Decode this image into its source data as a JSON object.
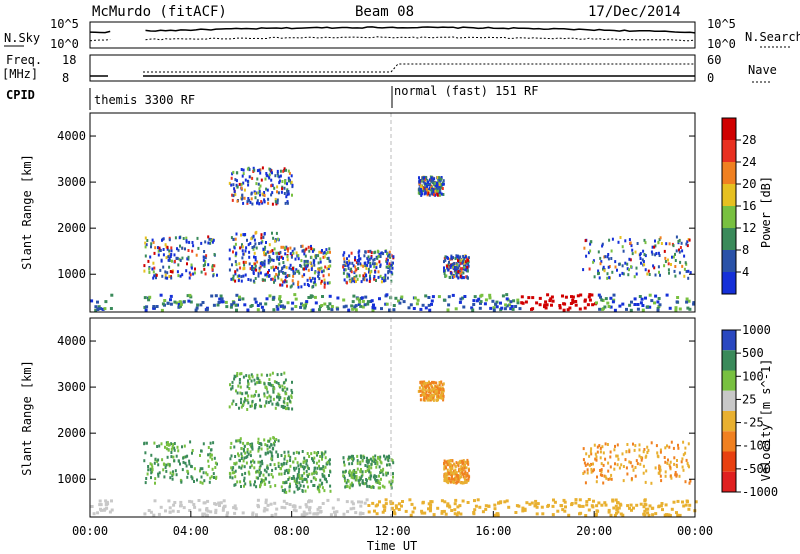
{
  "header": {
    "station": "McMurdo (fitACF)",
    "beam": "Beam 08",
    "date": "17/Dec/2014"
  },
  "status_panels": {
    "left_labels": {
      "nsky": "N.Sky",
      "freq": "Freq.",
      "freq_unit": "[MHz]",
      "cpid": "CPID"
    },
    "right_labels": {
      "nsearch": "N.Search",
      "nave": "Nave"
    },
    "nsky_ticks": [
      "10^5",
      "10^0"
    ],
    "nsearch_ticks": [
      "10^5",
      "10^0"
    ],
    "freq_ticks": [
      "18",
      "8"
    ],
    "nave_ticks": [
      "60",
      "0"
    ],
    "cpid_segments": [
      {
        "label": "themis 3300 RF",
        "start_h": 0.0,
        "end_h": 12.0
      },
      {
        "label": "normal (fast) 151 RF",
        "start_h": 12.0,
        "end_h": 24.0
      }
    ]
  },
  "chart_data": [
    {
      "type": "heatmap",
      "title": "Power",
      "ylabel": "Slant Range [km]",
      "xlabel": "",
      "x_range_hours": [
        0,
        24
      ],
      "ylim": [
        180,
        4500
      ],
      "y_ticks": [
        1000,
        2000,
        3000,
        4000
      ],
      "colorbar": {
        "label": "Power [dB]",
        "ticks": [
          "4",
          "8",
          "12",
          "16",
          "20",
          "24",
          "28"
        ],
        "colors": [
          "#1530d8",
          "#2a52a8",
          "#3a8a5a",
          "#78c040",
          "#e6c020",
          "#f08020",
          "#e83020",
          "#d00000"
        ]
      }
    },
    {
      "type": "heatmap",
      "title": "Velocity",
      "ylabel": "Slant Range [km]",
      "xlabel": "Time UT",
      "x_range_hours": [
        0,
        24
      ],
      "ylim": [
        180,
        4500
      ],
      "y_ticks": [
        1000,
        2000,
        3000,
        4000
      ],
      "x_ticks": [
        "00:00",
        "04:00",
        "08:00",
        "12:00",
        "16:00",
        "20:00",
        "00:00"
      ],
      "colorbar": {
        "label": "Velocity [m s^-1]",
        "ticks": [
          "1000",
          "500",
          "100",
          "25",
          "-25",
          "-100",
          "-500",
          "-1000"
        ],
        "colors": [
          "#2a48c0",
          "#3a8a5a",
          "#78c040",
          "#c8c8c8",
          "#e8b030",
          "#f08020",
          "#e84010",
          "#e02020"
        ]
      }
    }
  ]
}
